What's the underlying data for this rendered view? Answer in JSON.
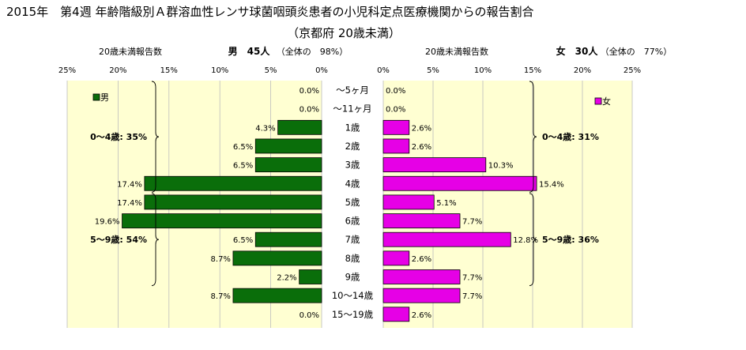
{
  "title": {
    "line1": "2015年　第4週 年齢階級別Ａ群溶血性レンサ球菌咽頭炎患者の小児科定点医療機関からの報告割合",
    "line2": "（京都府 20歳未満）"
  },
  "colors": {
    "male": "#0a6e0a",
    "female": "#e600e6",
    "background": "#ffffd2",
    "grid": "#bdbdbd",
    "bar_border": "#000000"
  },
  "chart_data": {
    "type": "bar",
    "orientation": "horizontal-butterfly",
    "categories": [
      "～5ヶ月",
      "～11ヶ月",
      "1歳",
      "2歳",
      "3歳",
      "4歳",
      "5歳",
      "6歳",
      "7歳",
      "8歳",
      "9歳",
      "10～14歳",
      "15～19歳"
    ],
    "xlim": [
      0,
      25
    ],
    "grid": true,
    "series": [
      {
        "name": "男",
        "side": "left",
        "values": [
          0.0,
          0.0,
          4.3,
          6.5,
          6.5,
          17.4,
          17.4,
          19.6,
          6.5,
          8.7,
          2.2,
          8.7,
          0.0
        ],
        "value_labels": [
          "0.0%",
          "0.0%",
          "4.3%",
          "6.5%",
          "6.5%",
          "17.4%",
          "17.4%",
          "19.6%",
          "6.5%",
          "8.7%",
          "2.2%",
          "8.7%",
          "0.0%"
        ],
        "header_label": "20歳未満報告数",
        "header_count": "男　45人",
        "header_share": "（全体の　98%）",
        "ticks": [
          "25%",
          "20%",
          "15%",
          "10%",
          "5%",
          "0%"
        ],
        "group_labels": [
          {
            "text": "0～4歳: 35%",
            "from": 0,
            "to": 5
          },
          {
            "text": "5～9歳: 54%",
            "from": 6,
            "to": 10
          }
        ]
      },
      {
        "name": "女",
        "side": "right",
        "values": [
          0.0,
          0.0,
          2.6,
          2.6,
          10.3,
          15.4,
          5.1,
          7.7,
          12.8,
          2.6,
          7.7,
          7.7,
          2.6
        ],
        "value_labels": [
          "0.0%",
          "0.0%",
          "2.6%",
          "2.6%",
          "10.3%",
          "15.4%",
          "5.1%",
          "7.7%",
          "12.8%",
          "2.6%",
          "7.7%",
          "7.7%",
          "2.6%"
        ],
        "header_label": "20歳未満報告数",
        "header_count": "女　30人",
        "header_share": "（全体の　77%）",
        "ticks": [
          "0%",
          "5%",
          "10%",
          "15%",
          "20%",
          "25%"
        ],
        "group_labels": [
          {
            "text": "0～4歳: 31%",
            "from": 0,
            "to": 5
          },
          {
            "text": "5～9歳: 36%",
            "from": 6,
            "to": 10
          }
        ]
      }
    ]
  }
}
